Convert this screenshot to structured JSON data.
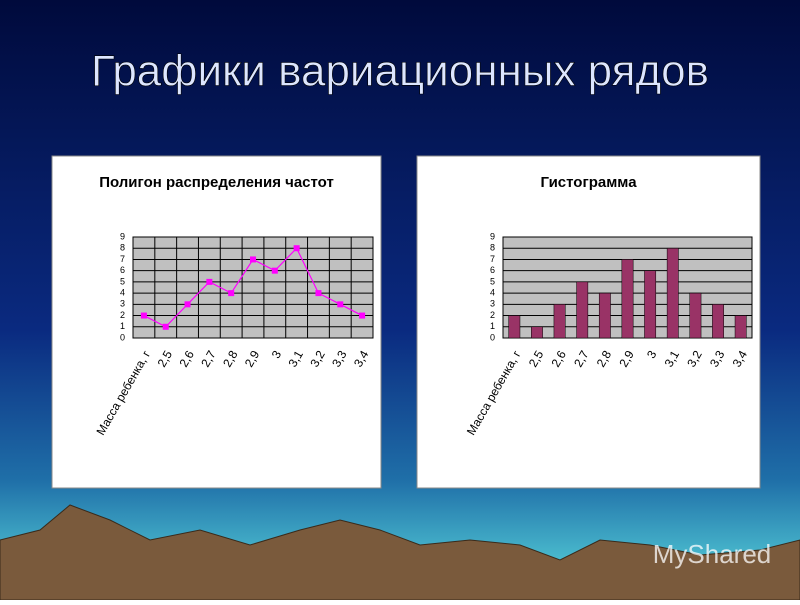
{
  "title": "Графики вариационных рядов",
  "watermark": "MyShared",
  "chart_data": [
    {
      "type": "line",
      "title": "Полигон распределения частот",
      "categories": [
        "Масса ребенка, г",
        "2,5",
        "2,6",
        "2,7",
        "2,8",
        "2,9",
        "3",
        "3,1",
        "3,2",
        "3,3",
        "3,4"
      ],
      "values": [
        2,
        1,
        3,
        5,
        4,
        7,
        6,
        8,
        4,
        3,
        2
      ],
      "color": "#ff00ff",
      "ylim": [
        0,
        9
      ],
      "yticks": [
        0,
        1,
        2,
        3,
        4,
        5,
        6,
        7,
        8,
        9
      ],
      "grid": true,
      "xgrid": true
    },
    {
      "type": "bar",
      "title": "Гистограмма",
      "categories": [
        "Масса ребенка, г",
        "2,5",
        "2,6",
        "2,7",
        "2,8",
        "2,9",
        "3",
        "3,1",
        "3,2",
        "3,3",
        "3,4"
      ],
      "values": [
        2,
        1,
        3,
        5,
        4,
        7,
        6,
        8,
        4,
        3,
        2
      ],
      "color": "#993366",
      "ylim": [
        0,
        9
      ],
      "yticks": [
        0,
        1,
        2,
        3,
        4,
        5,
        6,
        7,
        8,
        9
      ],
      "grid": true,
      "xgrid": false
    }
  ]
}
